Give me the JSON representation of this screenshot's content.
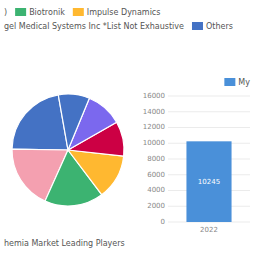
{
  "chart_data": [
    {
      "type": "pie",
      "title": "hemia Market Leading Players",
      "values": [
        0.22,
        0.185,
        0.17,
        0.13,
        0.1,
        0.105,
        0.09
      ],
      "colors": [
        "#4472C4",
        "#F4A0B0",
        "#3CB371",
        "#FFB830",
        "#CC0044",
        "#7B68EE",
        "#4472C4"
      ],
      "annotations": [
        {
          "text": ")"
        },
        {
          "text": "Biotronik",
          "color": "#3CB371"
        },
        {
          "text": "Impulse Dynamics",
          "color": "#FFB830"
        },
        {
          "text": "gel Medical Systems Inc *List Not Exhaustive"
        },
        {
          "text": "Others",
          "color": "#4472C4"
        }
      ]
    },
    {
      "type": "bar",
      "categories": [
        "2022"
      ],
      "series": [
        {
          "name": "My",
          "color": "#4A90D9",
          "values": [
            10245
          ]
        }
      ],
      "ylim": [
        0,
        16000
      ],
      "yticks": [
        0,
        2000,
        4000,
        6000,
        8000,
        10000,
        12000,
        14000,
        16000
      ],
      "grid": true,
      "data_labels": true,
      "legend": "upper right"
    }
  ]
}
